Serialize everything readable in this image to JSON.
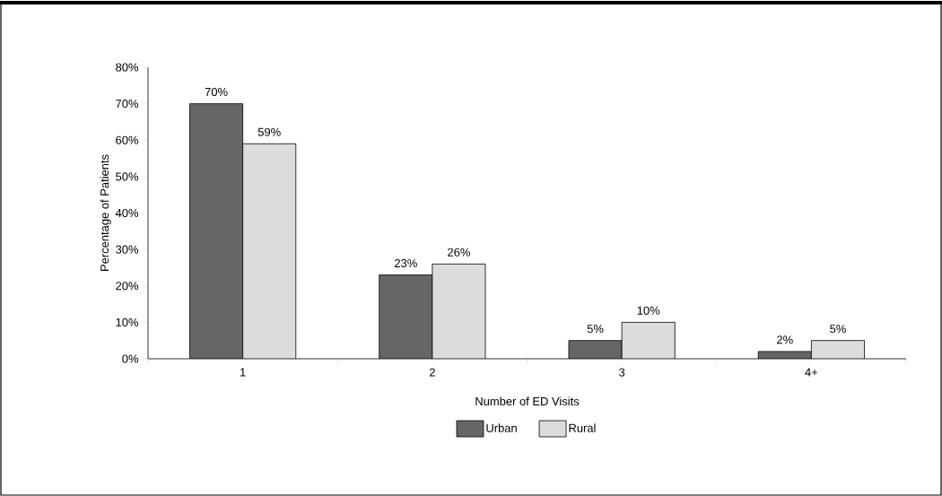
{
  "chart_data": {
    "type": "bar",
    "xlabel": "Number of ED Visits",
    "ylabel": "Percentage of Patients",
    "categories": [
      "1",
      "2",
      "3",
      "4+"
    ],
    "series": [
      {
        "name": "Urban",
        "color": "#666666",
        "values": [
          70,
          23,
          5,
          2
        ],
        "value_labels": [
          "70%",
          "23%",
          "5%",
          "2%"
        ]
      },
      {
        "name": "Rural",
        "color": "#dcdcdc",
        "values": [
          59,
          26,
          10,
          5
        ],
        "value_labels": [
          "59%",
          "26%",
          "10%",
          "5%"
        ]
      }
    ],
    "ylim": [
      0,
      80
    ],
    "yticks": [
      {
        "value": 0,
        "label": "0%"
      },
      {
        "value": 10,
        "label": "10%"
      },
      {
        "value": 20,
        "label": "20%"
      },
      {
        "value": 30,
        "label": "30%"
      },
      {
        "value": 40,
        "label": "40%"
      },
      {
        "value": 50,
        "label": "50%"
      },
      {
        "value": 60,
        "label": "60%"
      },
      {
        "value": 70,
        "label": "70%"
      },
      {
        "value": 80,
        "label": "80%"
      }
    ],
    "grid": false,
    "legend": "bottom"
  }
}
